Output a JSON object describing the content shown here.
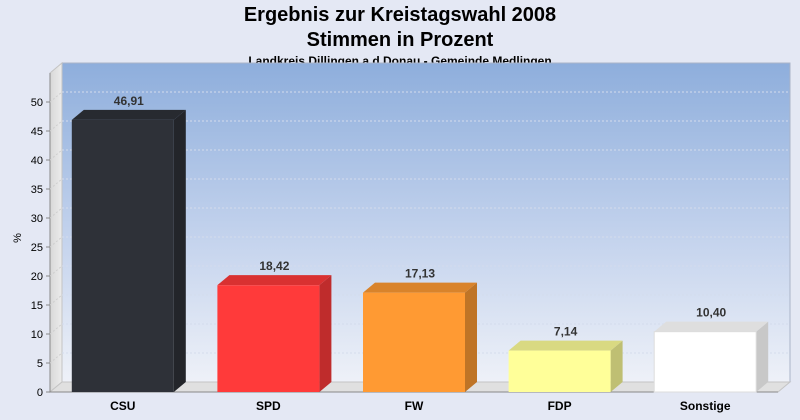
{
  "title": "Ergebnis zur Kreistagswahl 2008",
  "subtitle": "Stimmen in Prozent",
  "subsubtitle": "Landkreis Dillingen a.d.Donau - Gemeinde Medlingen",
  "chart_data": {
    "type": "bar",
    "title": "Ergebnis zur Kreistagswahl 2008",
    "subtitle": "Stimmen in Prozent",
    "xlabel": "",
    "ylabel": "%",
    "ylim": [
      0,
      55
    ],
    "yticks": [
      0,
      5,
      10,
      15,
      20,
      25,
      30,
      35,
      40,
      45,
      50
    ],
    "categories": [
      "CSU",
      "SPD",
      "FW",
      "FDP",
      "Sonstige"
    ],
    "values": [
      46.91,
      18.42,
      17.13,
      7.14,
      10.4
    ],
    "value_labels": [
      "46,91",
      "18,42",
      "17,13",
      "7,14",
      "10,40"
    ],
    "colors": [
      "#2e3138",
      "#ff3a3a",
      "#ff9a33",
      "#ffff99",
      "#ffffff"
    ],
    "grid": true,
    "legend": "none"
  }
}
